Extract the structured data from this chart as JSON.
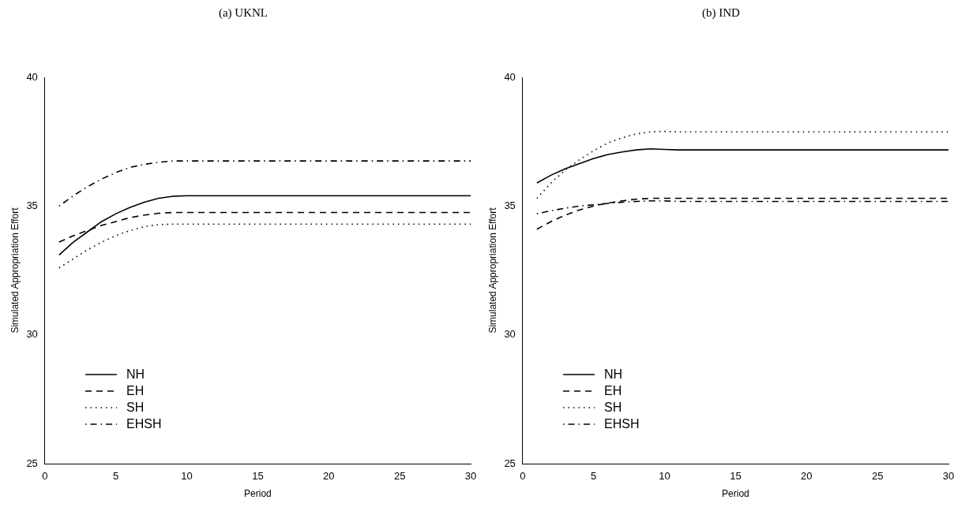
{
  "chart_data": [
    {
      "type": "line",
      "title": "(a) UKNL",
      "xlabel": "Period",
      "ylabel": "Simulated Appropriation Effort",
      "x": [
        1,
        2,
        3,
        4,
        5,
        6,
        7,
        8,
        9,
        10,
        11,
        12,
        13,
        14,
        15,
        16,
        17,
        18,
        19,
        20,
        21,
        22,
        23,
        24,
        25,
        26,
        27,
        28,
        29,
        30
      ],
      "xlim": [
        0,
        30
      ],
      "xticks": [
        0,
        5,
        10,
        15,
        20,
        25,
        30
      ],
      "ylim": [
        25,
        40
      ],
      "yticks": [
        25,
        30,
        35,
        40
      ],
      "legend": "bottom left",
      "series": [
        {
          "name": "NH",
          "color": "#000000",
          "line_style": "solid",
          "values": [
            33.1,
            33.6,
            34.0,
            34.4,
            34.7,
            34.95,
            35.15,
            35.3,
            35.38,
            35.4,
            35.4,
            35.4,
            35.4,
            35.4,
            35.4,
            35.4,
            35.4,
            35.4,
            35.4,
            35.4,
            35.4,
            35.4,
            35.4,
            35.4,
            35.4,
            35.4,
            35.4,
            35.4,
            35.4,
            35.4
          ]
        },
        {
          "name": "EH",
          "color": "#000000",
          "line_style": "dashed",
          "values": [
            33.6,
            33.85,
            34.05,
            34.25,
            34.4,
            34.55,
            34.65,
            34.72,
            34.75,
            34.75,
            34.75,
            34.75,
            34.75,
            34.75,
            34.75,
            34.75,
            34.75,
            34.75,
            34.75,
            34.75,
            34.75,
            34.75,
            34.75,
            34.75,
            34.75,
            34.75,
            34.75,
            34.75,
            34.75,
            34.75
          ]
        },
        {
          "name": "SH",
          "color": "#000000",
          "line_style": "dotted",
          "values": [
            32.6,
            32.95,
            33.3,
            33.6,
            33.85,
            34.05,
            34.2,
            34.28,
            34.3,
            34.3,
            34.3,
            34.3,
            34.3,
            34.3,
            34.3,
            34.3,
            34.3,
            34.3,
            34.3,
            34.3,
            34.3,
            34.3,
            34.3,
            34.3,
            34.3,
            34.3,
            34.3,
            34.3,
            34.3,
            34.3
          ]
        },
        {
          "name": "EHSH",
          "color": "#000000",
          "line_style": "dashdot",
          "values": [
            35.0,
            35.4,
            35.75,
            36.05,
            36.3,
            36.5,
            36.62,
            36.7,
            36.75,
            36.75,
            36.75,
            36.75,
            36.75,
            36.75,
            36.75,
            36.75,
            36.75,
            36.75,
            36.75,
            36.75,
            36.75,
            36.75,
            36.75,
            36.75,
            36.75,
            36.75,
            36.75,
            36.75,
            36.75,
            36.75
          ]
        }
      ]
    },
    {
      "type": "line",
      "title": "(b) IND",
      "xlabel": "Period",
      "ylabel": "Simulated Appropriation Effort",
      "x": [
        1,
        2,
        3,
        4,
        5,
        6,
        7,
        8,
        9,
        10,
        11,
        12,
        13,
        14,
        15,
        16,
        17,
        18,
        19,
        20,
        21,
        22,
        23,
        24,
        25,
        26,
        27,
        28,
        29,
        30
      ],
      "xlim": [
        0,
        30
      ],
      "xticks": [
        0,
        5,
        10,
        15,
        20,
        25,
        30
      ],
      "ylim": [
        25,
        40
      ],
      "yticks": [
        25,
        30,
        35,
        40
      ],
      "legend": "bottom left",
      "series": [
        {
          "name": "NH",
          "color": "#000000",
          "line_style": "solid",
          "values": [
            35.9,
            36.2,
            36.45,
            36.65,
            36.85,
            37.0,
            37.1,
            37.18,
            37.22,
            37.2,
            37.18,
            37.18,
            37.18,
            37.18,
            37.18,
            37.18,
            37.18,
            37.18,
            37.18,
            37.18,
            37.18,
            37.18,
            37.18,
            37.18,
            37.18,
            37.18,
            37.18,
            37.18,
            37.18,
            37.18
          ]
        },
        {
          "name": "EH",
          "color": "#000000",
          "line_style": "dashed",
          "values": [
            34.1,
            34.4,
            34.65,
            34.85,
            35.0,
            35.12,
            35.2,
            35.27,
            35.3,
            35.3,
            35.3,
            35.3,
            35.3,
            35.3,
            35.3,
            35.3,
            35.3,
            35.3,
            35.3,
            35.3,
            35.3,
            35.3,
            35.3,
            35.3,
            35.3,
            35.3,
            35.3,
            35.3,
            35.3,
            35.3
          ]
        },
        {
          "name": "SH",
          "color": "#000000",
          "line_style": "dotted",
          "values": [
            35.3,
            35.9,
            36.4,
            36.8,
            37.15,
            37.45,
            37.65,
            37.8,
            37.88,
            37.9,
            37.88,
            37.88,
            37.88,
            37.88,
            37.88,
            37.88,
            37.88,
            37.88,
            37.88,
            37.88,
            37.88,
            37.88,
            37.88,
            37.88,
            37.88,
            37.88,
            37.88,
            37.88,
            37.88,
            37.88
          ]
        },
        {
          "name": "EHSH",
          "color": "#000000",
          "line_style": "dashdot",
          "values": [
            34.7,
            34.82,
            34.92,
            35.0,
            35.05,
            35.1,
            35.15,
            35.18,
            35.2,
            35.2,
            35.18,
            35.18,
            35.18,
            35.18,
            35.18,
            35.18,
            35.18,
            35.18,
            35.18,
            35.18,
            35.18,
            35.18,
            35.18,
            35.18,
            35.18,
            35.18,
            35.18,
            35.18,
            35.18,
            35.18
          ]
        }
      ]
    }
  ]
}
